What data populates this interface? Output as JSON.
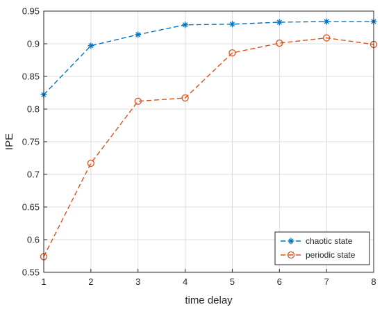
{
  "chart_data": {
    "type": "line",
    "title": "",
    "xlabel": "time delay",
    "ylabel": "IPE",
    "x": [
      1,
      2,
      3,
      4,
      5,
      6,
      7,
      8
    ],
    "xlim": [
      1,
      8
    ],
    "ylim": [
      0.55,
      0.95
    ],
    "xticks": [
      "1",
      "2",
      "3",
      "4",
      "5",
      "6",
      "7",
      "8"
    ],
    "yticks": [
      "0.55",
      "0.6",
      "0.65",
      "0.7",
      "0.75",
      "0.8",
      "0.85",
      "0.9",
      "0.95"
    ],
    "grid": true,
    "legend_position": "bottom-right",
    "series": [
      {
        "name": "chaotic state",
        "marker": "asterisk",
        "line_style": "dashed",
        "color": "#0072BD",
        "values": [
          0.822,
          0.897,
          0.914,
          0.929,
          0.93,
          0.933,
          0.934,
          0.934
        ]
      },
      {
        "name": "periodic state",
        "marker": "circle",
        "line_style": "dashed",
        "color": "#D95319",
        "values": [
          0.574,
          0.717,
          0.812,
          0.817,
          0.886,
          0.901,
          0.909,
          0.899
        ]
      }
    ]
  }
}
